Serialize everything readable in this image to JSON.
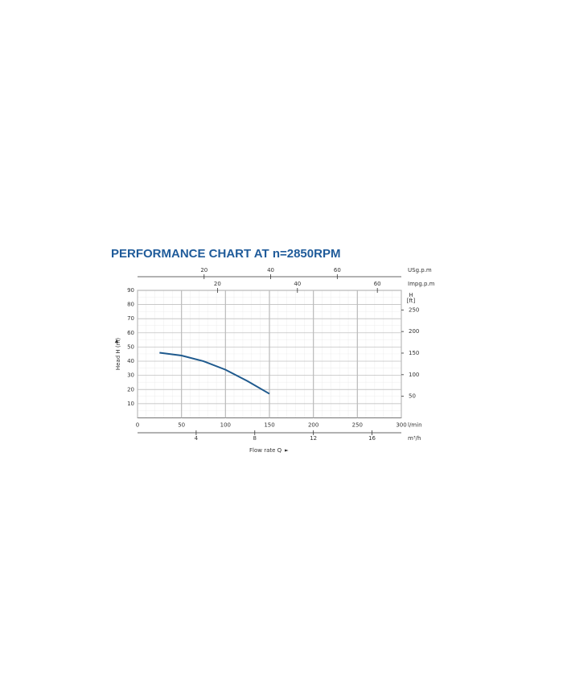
{
  "chart_data": {
    "type": "line",
    "title": "PERFORMANCE CHART AT n=2850RPM",
    "x_label": "Flow rate Q",
    "y_label": "Head H (m)",
    "x_unit": "l/min",
    "x": [
      25,
      50,
      75,
      100,
      125,
      150
    ],
    "values": [
      46,
      44,
      40,
      34,
      26,
      17
    ],
    "color": "#1f5a8e",
    "xlim": [
      0,
      300
    ],
    "xticks": [
      0,
      50,
      100,
      150,
      200,
      250,
      300
    ],
    "ylim": [
      0,
      90
    ],
    "yticks": [
      10,
      20,
      30,
      40,
      50,
      60,
      70,
      80,
      90
    ],
    "grid": true,
    "secondary_axes": [
      {
        "side": "top",
        "unit": "USg.p.m",
        "lim": [
          0,
          79.25
        ],
        "ticks": [
          20,
          40,
          60
        ]
      },
      {
        "side": "top",
        "unit": "Impg.p.m",
        "lim": [
          0,
          66
        ],
        "ticks": [
          20,
          40,
          60
        ]
      },
      {
        "side": "right",
        "unit": [
          "H",
          "[ft]"
        ],
        "lim": [
          0,
          295.3
        ],
        "ticks": [
          50,
          100,
          150,
          200,
          250
        ]
      },
      {
        "side": "bottom",
        "unit": "m³/h",
        "lim": [
          0,
          18
        ],
        "ticks": [
          4,
          8,
          12,
          16
        ]
      }
    ]
  }
}
